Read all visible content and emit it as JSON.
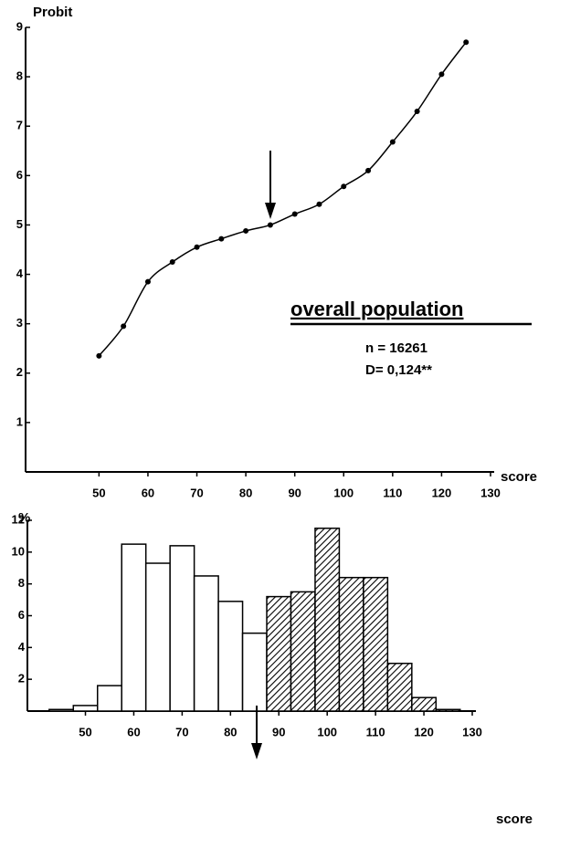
{
  "chart_data": [
    {
      "type": "line",
      "y_label": "Probit",
      "x_label": "score",
      "annotations": [
        "overall population",
        "n = 16261",
        "D= 0,124**"
      ],
      "x": [
        50,
        55,
        60,
        65,
        70,
        75,
        80,
        85,
        90,
        95,
        100,
        105,
        110,
        115,
        120,
        125
      ],
      "values": [
        2.35,
        2.95,
        3.85,
        4.25,
        4.55,
        4.72,
        4.88,
        5.0,
        5.22,
        5.42,
        5.78,
        6.1,
        6.68,
        7.3,
        8.05,
        8.7
      ],
      "color": "#000000",
      "xlim": [
        35,
        130
      ],
      "xticks": [
        50,
        60,
        70,
        80,
        90,
        100,
        110,
        120,
        130
      ],
      "ylim": [
        0,
        9
      ],
      "yticks": [
        1,
        2,
        3,
        4,
        5,
        6,
        7,
        8,
        9
      ]
    },
    {
      "type": "histogram",
      "y_label": "%",
      "x_label": "score",
      "bins": [
        42.5,
        47.5,
        52.5,
        57.5,
        62.5,
        67.5,
        72.5,
        77.5,
        82.5,
        87.5,
        92.5,
        97.5,
        102.5,
        107.5,
        112.5,
        117.5,
        122.5,
        127.5
      ],
      "values": [
        0.1,
        0.35,
        1.6,
        10.5,
        9.3,
        10.4,
        8.5,
        6.9,
        4.9,
        7.2,
        7.5,
        11.5,
        8.4,
        8.4,
        3.0,
        0.85,
        0.1
      ],
      "hatched": [
        false,
        false,
        false,
        false,
        false,
        false,
        false,
        false,
        false,
        true,
        true,
        true,
        true,
        true,
        true,
        true,
        true
      ],
      "xlim": [
        38,
        130
      ],
      "xticks": [
        50,
        60,
        70,
        80,
        90,
        100,
        110,
        120,
        130
      ],
      "ylim": [
        0,
        12
      ],
      "yticks": [
        2,
        4,
        6,
        8,
        10,
        12
      ]
    }
  ]
}
